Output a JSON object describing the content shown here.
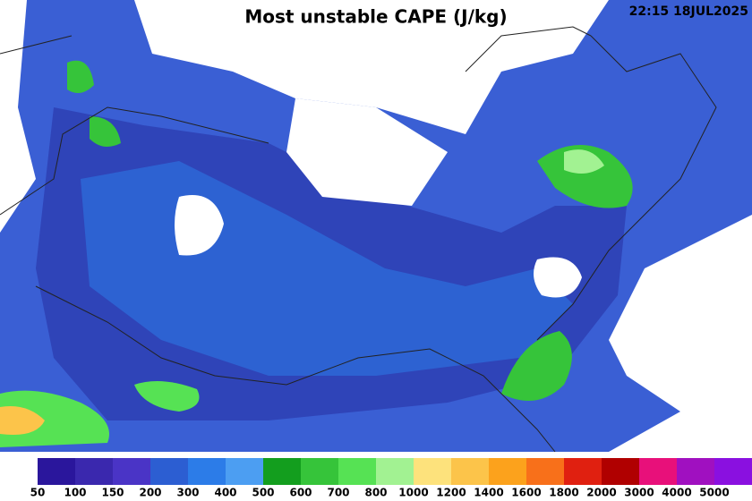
{
  "header": {
    "title": "Most unstable CAPE (J/kg)",
    "timestamp": "22:15 18JUL2025"
  },
  "colorbar": {
    "items": [
      {
        "label": 50,
        "color": "#2a169c"
      },
      {
        "label": 100,
        "color": "#3a28ae"
      },
      {
        "label": 150,
        "color": "#4a34c6"
      },
      {
        "label": 200,
        "color": "#2c5ed2"
      },
      {
        "label": 300,
        "color": "#2c7ce8"
      },
      {
        "label": 400,
        "color": "#4c9ef2"
      },
      {
        "label": 500,
        "color": "#139e1e"
      },
      {
        "label": 600,
        "color": "#36c43a"
      },
      {
        "label": 700,
        "color": "#56e254"
      },
      {
        "label": 800,
        "color": "#a2f292"
      },
      {
        "label": 1000,
        "color": "#fde27c"
      },
      {
        "label": 1200,
        "color": "#fcc44a"
      },
      {
        "label": 1400,
        "color": "#fca21c"
      },
      {
        "label": 1600,
        "color": "#f8701a"
      },
      {
        "label": 1800,
        "color": "#e02010"
      },
      {
        "label": 2000,
        "color": "#b00000"
      },
      {
        "label": 3000,
        "color": "#e8107a"
      },
      {
        "label": 4000,
        "color": "#a010c0"
      },
      {
        "label": 5000,
        "color": "#8a10e0"
      }
    ]
  }
}
